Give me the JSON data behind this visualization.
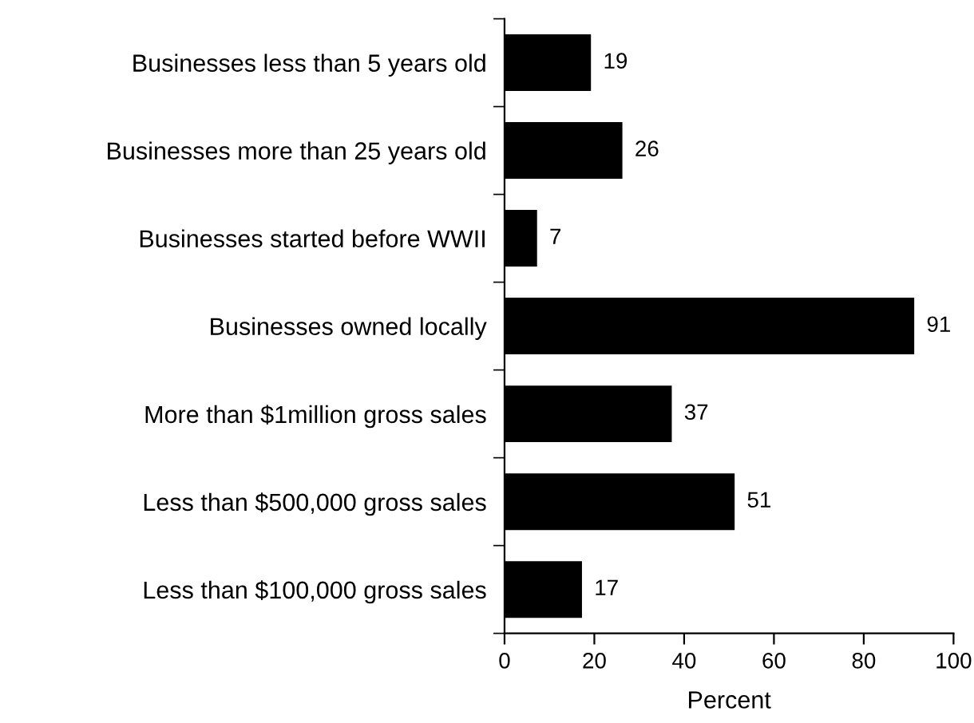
{
  "chart_data": {
    "type": "bar",
    "orientation": "horizontal",
    "xlabel": "Percent",
    "categories": [
      "Businesses less than 5 years old",
      "Businesses more than 25 years old",
      "Businesses started before WWII",
      "Businesses owned locally",
      "More than $1million gross sales",
      "Less than $500,000 gross sales",
      "Less than $100,000 gross sales"
    ],
    "values": [
      19,
      26,
      7,
      91,
      37,
      51,
      17
    ],
    "color": "#000000",
    "xlim": [
      0,
      100
    ],
    "xticks": [
      0,
      20,
      40,
      60,
      80,
      100
    ],
    "data_labels": true,
    "grid": false,
    "legend": false
  }
}
